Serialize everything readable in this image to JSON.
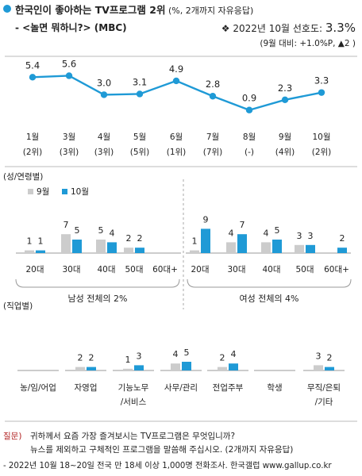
{
  "header": {
    "title": "한국인이 좋아하는 TV프로그램 2위",
    "title_note": "(%, 2개까지 자유응답)",
    "subtitle": "- <놀면 뭐하니?> (MBC)",
    "pref_label": "2022년 10월 선호도:",
    "pref_value": "3.3%",
    "change_note": "(9월 대비: +1.0%P, ▲2 )"
  },
  "colors": {
    "accent": "#1f9ad6",
    "sep9": "#cccccc",
    "title_dot": "#1f9ad6",
    "question": "#b22222"
  },
  "chart_data": [
    {
      "type": "line",
      "categories": [
        "1월",
        "3월",
        "4월",
        "5월",
        "6월",
        "7월",
        "8월",
        "9월",
        "10월"
      ],
      "rank_labels": [
        "(2위)",
        "(3위)",
        "(3위)",
        "(5위)",
        "(1위)",
        "(7위)",
        "(-)",
        "(4위)",
        "(2위)"
      ],
      "values": [
        5.4,
        5.6,
        3.0,
        3.1,
        4.9,
        2.8,
        0.9,
        2.3,
        3.3
      ],
      "value_labels": [
        "5.4",
        "5.6",
        "3.0",
        "3.1",
        "4.9",
        "2.8",
        "0.9",
        "2.3",
        "3.3"
      ]
    },
    {
      "type": "bar",
      "section_label": "(성/연령별)",
      "legend": [
        "9월",
        "10월"
      ],
      "categories": [
        "20대",
        "30대",
        "40대",
        "50대",
        "60대+",
        "20대",
        "30대",
        "40대",
        "50대",
        "60대+"
      ],
      "group_labels": [
        "남성 전체의 2%",
        "여성 전체의 4%"
      ],
      "series": [
        {
          "name": "9월",
          "values": [
            1,
            7,
            5,
            2,
            0,
            1,
            4,
            4,
            3,
            0
          ],
          "labels": [
            "1",
            "7",
            "5",
            "2",
            "",
            "1",
            "4",
            "4",
            "3",
            ""
          ]
        },
        {
          "name": "10월",
          "values": [
            1,
            5,
            4,
            2,
            0,
            9,
            7,
            5,
            3,
            2
          ],
          "labels": [
            "1",
            "5",
            "4",
            "2",
            "",
            "9",
            "7",
            "5",
            "3",
            "2"
          ]
        }
      ]
    },
    {
      "type": "bar",
      "section_label": "(직업별)",
      "categories": [
        "농/임/어업",
        "자영업",
        "기능노무\n/서비스",
        "사무/관리",
        "전업주부",
        "학생",
        "무직/은퇴\n/기타"
      ],
      "series": [
        {
          "name": "9월",
          "values": [
            0,
            2,
            1,
            4,
            2,
            0,
            3
          ],
          "labels": [
            "",
            "2",
            "1",
            "4",
            "2",
            "",
            "3"
          ]
        },
        {
          "name": "10월",
          "values": [
            0,
            2,
            3,
            5,
            4,
            0,
            2
          ],
          "labels": [
            "",
            "2",
            "3",
            "5",
            "4",
            "",
            "2"
          ]
        }
      ]
    }
  ],
  "footer": {
    "question_label": "질문)",
    "question_line1": "귀하께서 요즘 가장 즐겨보시는 TV프로그램은 무엇입니까?",
    "question_line2": "뉴스를 제외하고 구체적인 프로그램을 말씀해 주십시오. (2개까지 자유응답)",
    "source": "- 2022년 10월 18~20일 전국 만 18세 이상 1,000명 전화조사. 한국갤럽 www.gallup.co.kr"
  }
}
